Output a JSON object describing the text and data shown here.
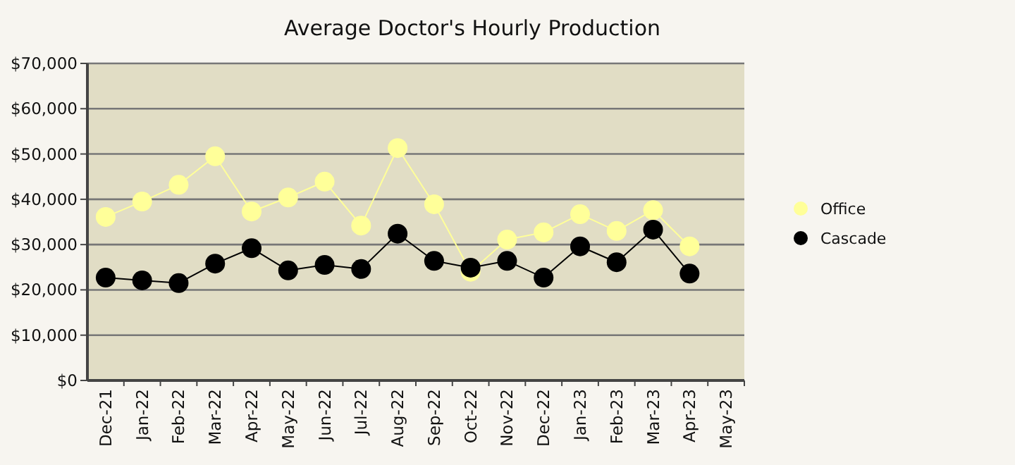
{
  "chart_data": {
    "type": "line",
    "title": "Average Doctor's Hourly Production",
    "categories": [
      "Dec-21",
      "Jan-22",
      "Feb-22",
      "Mar-22",
      "Apr-22",
      "May-22",
      "Jun-22",
      "Jul-22",
      "Aug-22",
      "Sep-22",
      "Oct-22",
      "Nov-22",
      "Dec-22",
      "Jan-23",
      "Feb-23",
      "Mar-23",
      "Apr-23",
      "May-23"
    ],
    "series": [
      {
        "name": "Office",
        "color": "#ffff99",
        "values": [
          36100,
          39500,
          43200,
          49500,
          37300,
          40400,
          43900,
          34200,
          51300,
          38900,
          24000,
          31100,
          32700,
          36700,
          33000,
          37600,
          29600,
          null
        ]
      },
      {
        "name": "Cascade",
        "color": "#000000",
        "values": [
          22700,
          22100,
          21500,
          25800,
          29200,
          24300,
          25500,
          24600,
          32400,
          26400,
          24900,
          26400,
          22700,
          29600,
          26100,
          33300,
          23600,
          null
        ]
      }
    ],
    "ylim": [
      0,
      70000
    ],
    "yticks": [
      {
        "value": 0,
        "label": "$0"
      },
      {
        "value": 10000,
        "label": "$10,000"
      },
      {
        "value": 20000,
        "label": "$20,000"
      },
      {
        "value": 30000,
        "label": "$30,000"
      },
      {
        "value": 40000,
        "label": "$40,000"
      },
      {
        "value": 50000,
        "label": "$50,000"
      },
      {
        "value": 60000,
        "label": "$60,000"
      },
      {
        "value": 70000,
        "label": "$70,000"
      }
    ],
    "grid": "y",
    "legend": "right",
    "marker": "circle",
    "line_style": "solid"
  }
}
